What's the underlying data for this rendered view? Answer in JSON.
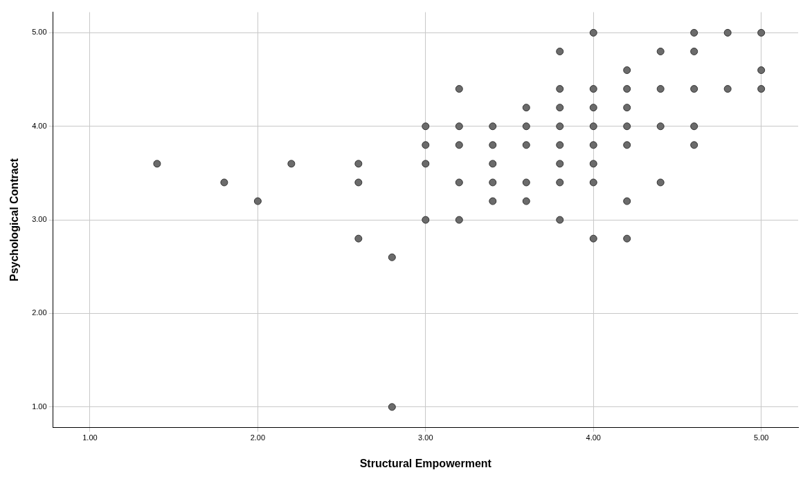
{
  "chart_data": {
    "type": "scatter",
    "xlabel": "Structural Empowerment",
    "ylabel": "Psychological Contract",
    "xlim": [
      0.78,
      5.22
    ],
    "ylim": [
      0.78,
      5.22
    ],
    "xticks": [
      {
        "value": 1,
        "label": "1.00"
      },
      {
        "value": 2,
        "label": "2.00"
      },
      {
        "value": 3,
        "label": "3.00"
      },
      {
        "value": 4,
        "label": "4.00"
      },
      {
        "value": 5,
        "label": "5.00"
      }
    ],
    "yticks": [
      {
        "value": 1,
        "label": "1.00"
      },
      {
        "value": 2,
        "label": "2.00"
      },
      {
        "value": 3,
        "label": "3.00"
      },
      {
        "value": 4,
        "label": "4.00"
      },
      {
        "value": 5,
        "label": "5.00"
      }
    ],
    "grid": true,
    "marker": "circle",
    "series": [
      {
        "color": "#6b6b6b",
        "x": [
          1.4,
          1.8,
          2.0,
          2.2,
          2.6,
          2.6,
          2.6,
          2.8,
          2.8,
          3.0,
          3.0,
          3.0,
          3.0,
          3.2,
          3.2,
          3.2,
          3.2,
          3.2,
          3.4,
          3.4,
          3.4,
          3.4,
          3.4,
          3.6,
          3.6,
          3.6,
          3.6,
          3.6,
          3.8,
          3.8,
          3.8,
          3.8,
          3.8,
          3.8,
          3.8,
          3.8,
          4.0,
          4.0,
          4.0,
          4.0,
          4.0,
          4.0,
          4.0,
          4.0,
          4.2,
          4.2,
          4.2,
          4.2,
          4.2,
          4.2,
          4.2,
          4.4,
          4.4,
          4.4,
          4.4,
          4.6,
          4.6,
          4.6,
          4.6,
          4.6,
          4.8,
          4.8,
          5.0,
          5.0,
          5.0
        ],
        "values": [
          3.6,
          3.4,
          3.2,
          3.6,
          3.6,
          3.4,
          2.8,
          2.6,
          1.0,
          4.0,
          3.8,
          3.6,
          3.0,
          4.4,
          4.0,
          3.8,
          3.4,
          3.0,
          4.0,
          3.8,
          3.6,
          3.4,
          3.2,
          4.2,
          4.0,
          3.8,
          3.4,
          3.2,
          4.8,
          4.4,
          4.2,
          4.0,
          3.8,
          3.6,
          3.4,
          3.0,
          5.0,
          4.4,
          4.2,
          4.0,
          3.8,
          3.6,
          3.4,
          2.8,
          4.6,
          4.4,
          4.2,
          4.0,
          3.8,
          3.2,
          2.8,
          4.8,
          4.4,
          4.0,
          3.4,
          5.0,
          4.8,
          4.4,
          4.0,
          3.8,
          5.0,
          4.4,
          5.0,
          4.6,
          4.4
        ]
      }
    ]
  }
}
